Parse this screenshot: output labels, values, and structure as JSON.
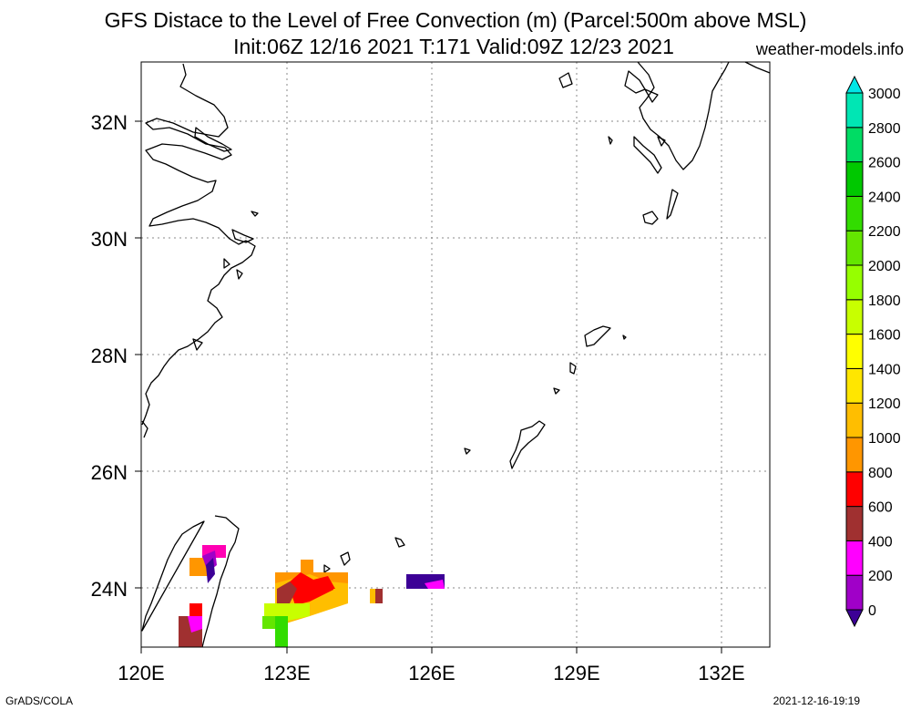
{
  "header": {
    "title_line1": "GFS Distace to the Level of Free Convection (m) (Parcel:500m above MSL)",
    "title_line2": "Init:06Z 12/16 2021 T:171 Valid:09Z 12/23 2021",
    "site": "weather-models.info"
  },
  "footer": {
    "left": "GrADS/COLA",
    "right": "2021-12-16-19:19"
  },
  "map": {
    "lat_labels": [
      "32N",
      "30N",
      "28N",
      "26N",
      "24N"
    ],
    "lon_labels": [
      "120E",
      "123E",
      "126E",
      "129E",
      "132E"
    ]
  },
  "colorbar": {
    "levels": [
      "0",
      "200",
      "400",
      "600",
      "800",
      "1000",
      "1200",
      "1400",
      "1600",
      "1800",
      "2000",
      "2200",
      "2400",
      "2600",
      "2800",
      "3000"
    ],
    "colors": [
      "#3c0096",
      "#a000c8",
      "#ff00ff",
      "#a03030",
      "#ff0000",
      "#ff9600",
      "#ffbe00",
      "#ffe600",
      "#ffff00",
      "#c8ff00",
      "#96ff00",
      "#64e600",
      "#32dc00",
      "#00c800",
      "#00dc64",
      "#00e6b4",
      "#00e6e6"
    ]
  }
}
